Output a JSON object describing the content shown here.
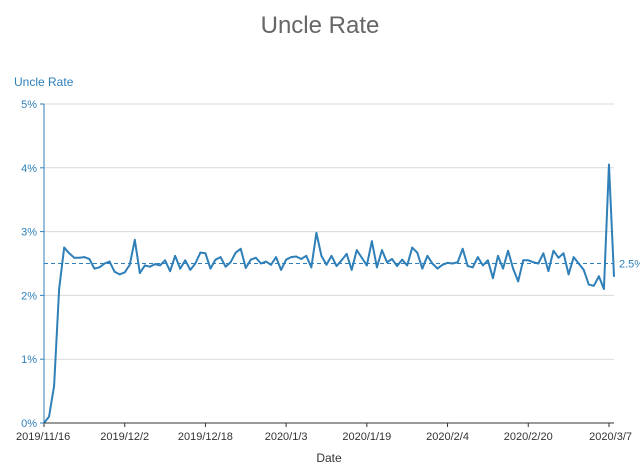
{
  "chart_data": {
    "type": "line",
    "title": "Uncle Rate",
    "ylabel": "Uncle Rate",
    "xlabel": "Date",
    "ylim": [
      0,
      5
    ],
    "y_ticks": [
      "0%",
      "1%",
      "2%",
      "3%",
      "4%",
      "5%"
    ],
    "x_ticks": [
      "2019/11/16",
      "2019/12/2",
      "2019/12/18",
      "2020/1/3",
      "2020/1/19",
      "2020/2/4",
      "2020/2/20",
      "2020/3/7"
    ],
    "grid": true,
    "color": "#2f7fb8",
    "reference_line": {
      "value": 2.5,
      "label": "2.5%",
      "style": "dashed"
    },
    "x_start": "2019/11/16",
    "series": [
      {
        "values": [
          0.0,
          0.1,
          0.58,
          2.1,
          2.75,
          2.66,
          2.59,
          2.59,
          2.6,
          2.57,
          2.42,
          2.44,
          2.5,
          2.53,
          2.37,
          2.33,
          2.36,
          2.48,
          2.87,
          2.35,
          2.47,
          2.45,
          2.49,
          2.47,
          2.55,
          2.38,
          2.62,
          2.42,
          2.55,
          2.4,
          2.5,
          2.67,
          2.66,
          2.42,
          2.56,
          2.6,
          2.45,
          2.52,
          2.67,
          2.73,
          2.43,
          2.56,
          2.59,
          2.5,
          2.53,
          2.48,
          2.6,
          2.4,
          2.56,
          2.6,
          2.61,
          2.57,
          2.62,
          2.44,
          2.98,
          2.62,
          2.48,
          2.62,
          2.46,
          2.55,
          2.65,
          2.4,
          2.71,
          2.59,
          2.47,
          2.85,
          2.44,
          2.71,
          2.52,
          2.57,
          2.46,
          2.56,
          2.47,
          2.75,
          2.67,
          2.42,
          2.62,
          2.5,
          2.42,
          2.48,
          2.51,
          2.5,
          2.52,
          2.73,
          2.46,
          2.44,
          2.6,
          2.47,
          2.55,
          2.27,
          2.62,
          2.42,
          2.7,
          2.42,
          2.22,
          2.55,
          2.55,
          2.52,
          2.5,
          2.66,
          2.38,
          2.7,
          2.59,
          2.66,
          2.33,
          2.6,
          2.5,
          2.4,
          2.17,
          2.15,
          2.3,
          2.1,
          4.05,
          2.3
        ]
      }
    ]
  }
}
